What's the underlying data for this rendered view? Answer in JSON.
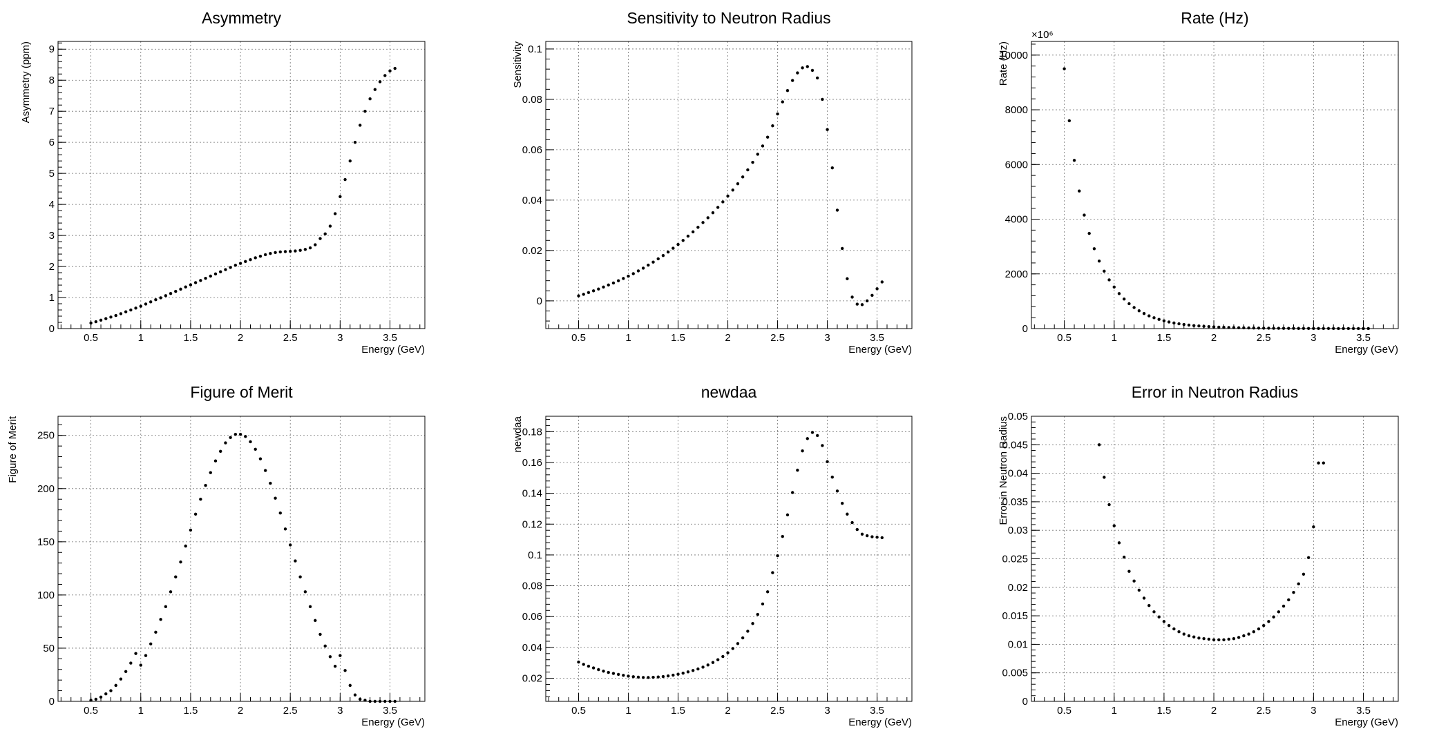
{
  "chart_data": [
    {
      "type": "scatter",
      "title": "Asymmetry",
      "xlabel": "Energy (GeV)",
      "ylabel": "Asymmetry (ppm)",
      "xlim": [
        0.17,
        3.85
      ],
      "ylim": [
        0,
        9.25
      ],
      "xticks": [
        0.5,
        1,
        1.5,
        2,
        2.5,
        3,
        3.5
      ],
      "xticklabels": [
        "0.5",
        "1",
        "1.5",
        "2",
        "2.5",
        "3",
        "3.5"
      ],
      "yticks": [
        0,
        1,
        2,
        3,
        4,
        5,
        6,
        7,
        8,
        9
      ],
      "yticklabels": [
        "0",
        "1",
        "2",
        "3",
        "4",
        "5",
        "6",
        "7",
        "8",
        "9"
      ],
      "grid": true,
      "x": [
        0.5,
        0.55,
        0.6,
        0.65,
        0.7,
        0.75,
        0.8,
        0.85,
        0.9,
        0.95,
        1.0,
        1.05,
        1.1,
        1.15,
        1.2,
        1.25,
        1.3,
        1.35,
        1.4,
        1.45,
        1.5,
        1.55,
        1.6,
        1.65,
        1.7,
        1.75,
        1.8,
        1.85,
        1.9,
        1.95,
        2.0,
        2.05,
        2.1,
        2.15,
        2.2,
        2.25,
        2.3,
        2.35,
        2.4,
        2.45,
        2.5,
        2.55,
        2.6,
        2.65,
        2.7,
        2.75,
        2.8,
        2.85,
        2.9,
        2.95,
        3.0,
        3.05,
        3.1,
        3.15,
        3.2,
        3.25,
        3.3,
        3.35,
        3.4,
        3.45,
        3.5,
        3.55
      ],
      "y": [
        0.18,
        0.22,
        0.27,
        0.32,
        0.37,
        0.42,
        0.48,
        0.54,
        0.6,
        0.66,
        0.72,
        0.79,
        0.86,
        0.93,
        0.99,
        1.06,
        1.13,
        1.2,
        1.27,
        1.34,
        1.41,
        1.48,
        1.55,
        1.62,
        1.69,
        1.76,
        1.83,
        1.9,
        1.97,
        2.04,
        2.1,
        2.16,
        2.22,
        2.28,
        2.33,
        2.38,
        2.42,
        2.45,
        2.47,
        2.48,
        2.49,
        2.5,
        2.52,
        2.55,
        2.6,
        2.7,
        2.9,
        3.05,
        3.3,
        3.7,
        4.25,
        4.8,
        5.4,
        6.0,
        6.55,
        7.0,
        7.4,
        7.7,
        7.95,
        8.15,
        8.3,
        8.38
      ]
    },
    {
      "type": "scatter",
      "title": "Sensitivity to Neutron Radius",
      "xlabel": "Energy (GeV)",
      "ylabel": "Sensitivity",
      "xlim": [
        0.17,
        3.85
      ],
      "ylim": [
        -0.011,
        0.103
      ],
      "xticks": [
        0.5,
        1,
        1.5,
        2,
        2.5,
        3,
        3.5
      ],
      "xticklabels": [
        "0.5",
        "1",
        "1.5",
        "2",
        "2.5",
        "3",
        "3.5"
      ],
      "yticks": [
        0,
        0.02,
        0.04,
        0.06,
        0.08,
        0.1
      ],
      "yticklabels": [
        "0",
        "0.02",
        "0.04",
        "0.06",
        "0.08",
        "0.1"
      ],
      "grid": true,
      "x": [
        0.5,
        0.55,
        0.6,
        0.65,
        0.7,
        0.75,
        0.8,
        0.85,
        0.9,
        0.95,
        1.0,
        1.05,
        1.1,
        1.15,
        1.2,
        1.25,
        1.3,
        1.35,
        1.4,
        1.45,
        1.5,
        1.55,
        1.6,
        1.65,
        1.7,
        1.75,
        1.8,
        1.85,
        1.9,
        1.95,
        2.0,
        2.05,
        2.1,
        2.15,
        2.2,
        2.25,
        2.3,
        2.35,
        2.4,
        2.45,
        2.5,
        2.55,
        2.6,
        2.65,
        2.7,
        2.75,
        2.8,
        2.85,
        2.9,
        2.95,
        3.0,
        3.05,
        3.1,
        3.15,
        3.2,
        3.25,
        3.3,
        3.35,
        3.4,
        3.45,
        3.5,
        3.55
      ],
      "y": [
        0.002,
        0.0026,
        0.0033,
        0.004,
        0.0047,
        0.0055,
        0.0063,
        0.0071,
        0.008,
        0.0089,
        0.0098,
        0.0108,
        0.0119,
        0.013,
        0.0142,
        0.0154,
        0.0167,
        0.018,
        0.0194,
        0.0209,
        0.0224,
        0.024,
        0.0257,
        0.0274,
        0.0292,
        0.0311,
        0.033,
        0.035,
        0.0371,
        0.0393,
        0.0416,
        0.044,
        0.0465,
        0.0492,
        0.052,
        0.055,
        0.0582,
        0.0615,
        0.065,
        0.0695,
        0.0742,
        0.079,
        0.0835,
        0.0875,
        0.0905,
        0.0925,
        0.093,
        0.0915,
        0.0885,
        0.08,
        0.068,
        0.0528,
        0.036,
        0.0208,
        0.0088,
        0.0015,
        -0.0013,
        -0.0015,
        0.0,
        0.0022,
        0.0048,
        0.0075
      ]
    },
    {
      "type": "scatter",
      "title": "Rate (Hz)",
      "xlabel": "Energy (GeV)",
      "ylabel": "Rate (Hz)",
      "multiplier": "×10⁶",
      "xlim": [
        0.17,
        3.85
      ],
      "ylim": [
        0,
        10500
      ],
      "xticks": [
        0.5,
        1,
        1.5,
        2,
        2.5,
        3,
        3.5
      ],
      "xticklabels": [
        "0.5",
        "1",
        "1.5",
        "2",
        "2.5",
        "3",
        "3.5"
      ],
      "yticks": [
        0,
        2000,
        4000,
        6000,
        8000,
        10000
      ],
      "yticklabels": [
        "0",
        "2000",
        "4000",
        "6000",
        "8000",
        "10000"
      ],
      "grid": true,
      "x": [
        0.5,
        0.55,
        0.6,
        0.65,
        0.7,
        0.75,
        0.8,
        0.85,
        0.9,
        0.95,
        1.0,
        1.05,
        1.1,
        1.15,
        1.2,
        1.25,
        1.3,
        1.35,
        1.4,
        1.45,
        1.5,
        1.55,
        1.6,
        1.65,
        1.7,
        1.75,
        1.8,
        1.85,
        1.9,
        1.95,
        2.0,
        2.05,
        2.1,
        2.15,
        2.2,
        2.25,
        2.3,
        2.35,
        2.4,
        2.45,
        2.5,
        2.55,
        2.6,
        2.65,
        2.7,
        2.75,
        2.8,
        2.85,
        2.9,
        2.95,
        3.0,
        3.05,
        3.1,
        3.15,
        3.2,
        3.25,
        3.3,
        3.35,
        3.4,
        3.45,
        3.5,
        3.55
      ],
      "y": [
        9500,
        7600,
        6150,
        5030,
        4150,
        3480,
        2920,
        2470,
        2100,
        1780,
        1520,
        1280,
        1080,
        910,
        770,
        650,
        550,
        465,
        395,
        335,
        285,
        240,
        205,
        175,
        150,
        128,
        110,
        95,
        82,
        71,
        61,
        53,
        46,
        40,
        35,
        30,
        26,
        23,
        20,
        17,
        15,
        13,
        11,
        10,
        9,
        8,
        7,
        6,
        5,
        5,
        4,
        4,
        3,
        3,
        3,
        2,
        2,
        2,
        2,
        1,
        1,
        1
      ]
    },
    {
      "type": "scatter",
      "title": "Figure of Merit",
      "xlabel": "Energy (GeV)",
      "ylabel": "Figure of Merit",
      "xlim": [
        0.17,
        3.85
      ],
      "ylim": [
        0,
        268
      ],
      "xticks": [
        0.5,
        1,
        1.5,
        2,
        2.5,
        3,
        3.5
      ],
      "xticklabels": [
        "0.5",
        "1",
        "1.5",
        "2",
        "2.5",
        "3",
        "3.5"
      ],
      "yticks": [
        0,
        50,
        100,
        150,
        200,
        250
      ],
      "yticklabels": [
        "0",
        "50",
        "100",
        "150",
        "200",
        "250"
      ],
      "grid": true,
      "x": [
        0.5,
        0.55,
        0.6,
        0.65,
        0.7,
        0.75,
        0.8,
        0.85,
        0.9,
        0.95,
        1.0,
        1.05,
        1.1,
        1.15,
        1.2,
        1.25,
        1.3,
        1.35,
        1.4,
        1.45,
        1.5,
        1.55,
        1.6,
        1.65,
        1.7,
        1.75,
        1.8,
        1.85,
        1.9,
        1.95,
        2.0,
        2.05,
        2.1,
        2.15,
        2.2,
        2.25,
        2.3,
        2.35,
        2.4,
        2.45,
        2.5,
        2.55,
        2.6,
        2.65,
        2.7,
        2.75,
        2.8,
        2.85,
        2.9,
        2.95,
        3.0,
        3.05,
        3.1,
        3.15,
        3.2,
        3.25,
        3.3,
        3.35,
        3.4,
        3.45,
        3.5,
        3.55
      ],
      "y": [
        1,
        2,
        4,
        7,
        10,
        15,
        21,
        28,
        36,
        45,
        34,
        43,
        54,
        65,
        77,
        89,
        103,
        117,
        131,
        146,
        161,
        176,
        190,
        203,
        215,
        226,
        235,
        243,
        248,
        251,
        251,
        249,
        244,
        237,
        228,
        217,
        205,
        191,
        177,
        162,
        147,
        132,
        117,
        103,
        89,
        76,
        63,
        52,
        42,
        33,
        43,
        29,
        15,
        6,
        2,
        1,
        0,
        0,
        0,
        0,
        0,
        0
      ]
    },
    {
      "type": "scatter",
      "title": "newdaa",
      "xlabel": "Energy (GeV)",
      "ylabel": "newdaa",
      "xlim": [
        0.17,
        3.85
      ],
      "ylim": [
        0.005,
        0.19
      ],
      "xticks": [
        0.5,
        1,
        1.5,
        2,
        2.5,
        3,
        3.5
      ],
      "xticklabels": [
        "0.5",
        "1",
        "1.5",
        "2",
        "2.5",
        "3",
        "3.5"
      ],
      "yticks": [
        0.02,
        0.04,
        0.06,
        0.08,
        0.1,
        0.12,
        0.14,
        0.16,
        0.18
      ],
      "yticklabels": [
        "0.02",
        "0.04",
        "0.06",
        "0.08",
        "0.1",
        "0.12",
        "0.14",
        "0.16",
        "0.18"
      ],
      "grid": true,
      "x": [
        0.5,
        0.55,
        0.6,
        0.65,
        0.7,
        0.75,
        0.8,
        0.85,
        0.9,
        0.95,
        1.0,
        1.05,
        1.1,
        1.15,
        1.2,
        1.25,
        1.3,
        1.35,
        1.4,
        1.45,
        1.5,
        1.55,
        1.6,
        1.65,
        1.7,
        1.75,
        1.8,
        1.85,
        1.9,
        1.95,
        2.0,
        2.05,
        2.1,
        2.15,
        2.2,
        2.25,
        2.3,
        2.35,
        2.4,
        2.45,
        2.5,
        2.55,
        2.6,
        2.65,
        2.7,
        2.75,
        2.8,
        2.85,
        2.9,
        2.95,
        3.0,
        3.05,
        3.1,
        3.15,
        3.2,
        3.25,
        3.3,
        3.35,
        3.4,
        3.45,
        3.5,
        3.55
      ],
      "y": [
        0.0305,
        0.029,
        0.0278,
        0.0267,
        0.0256,
        0.0246,
        0.0238,
        0.0231,
        0.0225,
        0.0219,
        0.0214,
        0.021,
        0.0207,
        0.0205,
        0.0205,
        0.0206,
        0.0208,
        0.0211,
        0.0215,
        0.022,
        0.0226,
        0.0233,
        0.0241,
        0.025,
        0.026,
        0.0272,
        0.0286,
        0.0302,
        0.032,
        0.0341,
        0.0365,
        0.0393,
        0.0425,
        0.0462,
        0.0505,
        0.0555,
        0.0614,
        0.0682,
        0.0761,
        0.0885,
        0.0995,
        0.112,
        0.126,
        0.1405,
        0.155,
        0.1675,
        0.1755,
        0.1795,
        0.1775,
        0.171,
        0.1605,
        0.1505,
        0.1415,
        0.1335,
        0.1265,
        0.121,
        0.1165,
        0.1135,
        0.1125,
        0.1118,
        0.1115,
        0.1112
      ]
    },
    {
      "type": "scatter",
      "title": "Error in Neutron Radius",
      "xlabel": "Energy (GeV)",
      "ylabel": "Error in Neutron Radius",
      "xlim": [
        0.17,
        3.85
      ],
      "ylim": [
        0,
        0.05
      ],
      "xticks": [
        0.5,
        1,
        1.5,
        2,
        2.5,
        3,
        3.5
      ],
      "xticklabels": [
        "0.5",
        "1",
        "1.5",
        "2",
        "2.5",
        "3",
        "3.5"
      ],
      "yticks": [
        0,
        0.005,
        0.01,
        0.015,
        0.02,
        0.025,
        0.03,
        0.035,
        0.04,
        0.045,
        0.05
      ],
      "yticklabels": [
        "0",
        "0.005",
        "0.01",
        "0.015",
        "0.02",
        "0.025",
        "0.03",
        "0.035",
        "0.04",
        "0.045",
        "0.05"
      ],
      "grid": true,
      "x": [
        0.85,
        0.9,
        0.95,
        1.0,
        1.05,
        1.1,
        1.15,
        1.2,
        1.25,
        1.3,
        1.35,
        1.4,
        1.45,
        1.5,
        1.55,
        1.6,
        1.65,
        1.7,
        1.75,
        1.8,
        1.85,
        1.9,
        1.95,
        2.0,
        2.05,
        2.1,
        2.15,
        2.2,
        2.25,
        2.3,
        2.35,
        2.4,
        2.45,
        2.5,
        2.55,
        2.6,
        2.65,
        2.7,
        2.75,
        2.8,
        2.85,
        2.9,
        2.95,
        3.0,
        3.05,
        3.1
      ],
      "y": [
        0.045,
        0.0393,
        0.0345,
        0.0308,
        0.0278,
        0.0253,
        0.0228,
        0.0211,
        0.0195,
        0.0181,
        0.0168,
        0.0157,
        0.0148,
        0.014,
        0.0133,
        0.0127,
        0.0122,
        0.0118,
        0.0115,
        0.0113,
        0.0111,
        0.011,
        0.0109,
        0.0108,
        0.0108,
        0.0108,
        0.0109,
        0.011,
        0.0112,
        0.0115,
        0.0118,
        0.0122,
        0.0127,
        0.0133,
        0.014,
        0.0148,
        0.0157,
        0.0167,
        0.0178,
        0.0191,
        0.0206,
        0.0223,
        0.0252,
        0.0306,
        0.0418,
        0.0418
      ]
    }
  ]
}
